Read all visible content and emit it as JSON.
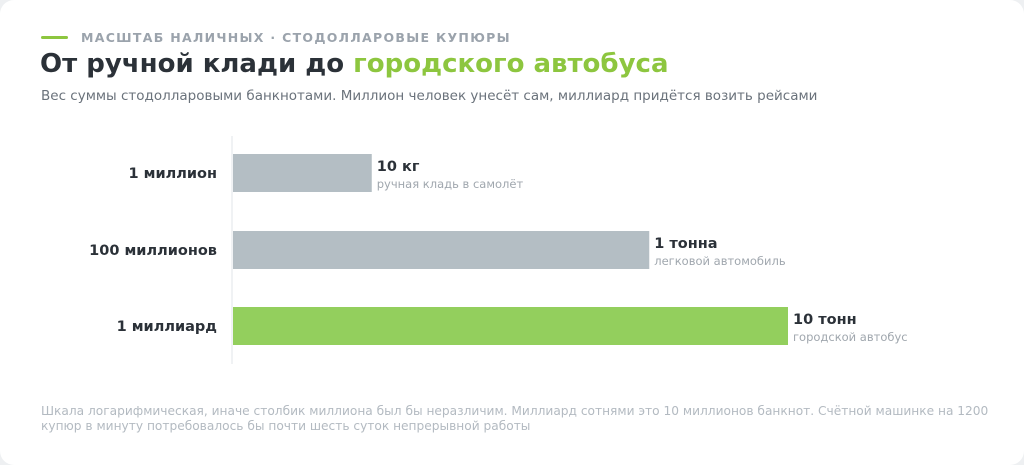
{
  "header": {
    "eyebrow": "МАСШТАБ НАЛИЧНЫХ · СТОДОЛЛАРОВЫЕ КУПЮРЫ",
    "title_plain": "От ручной клади до ",
    "title_accent": "городского автобуса",
    "subtitle": "Вес суммы стодолларовыми банкнотами. Миллион человек унесёт сам, миллиард придётся возить рейсами"
  },
  "footnote": "Шкала логарифмическая, иначе столбик миллиона был бы неразличим. Миллиард сотнями это 10 миллионов банкнот. Счётной машинке на 1200 купюр в минуту потребовалось бы почти шесть суток непрерывной работы",
  "colors": {
    "accent": "#8dc63f",
    "bar_neutral": "#b4bec4",
    "bar_highlight": "#93cf5d",
    "text_dark": "#2b3138",
    "text_muted": "#a0a7ae",
    "axis": "#e2e5e8"
  },
  "chart_data": {
    "type": "bar",
    "orientation": "horizontal",
    "scale": "log",
    "unit": "kg",
    "categories": [
      "1 миллион",
      "100 миллионов",
      "1 миллиард"
    ],
    "values": [
      10,
      1000,
      10000
    ],
    "value_labels": [
      "10 кг",
      "1 тонна",
      "10 тонн"
    ],
    "annotations": [
      "ручная кладь в самолёт",
      "легковой автомобиль",
      "городской автобус"
    ],
    "highlight_index": 2,
    "xlim": [
      1,
      15000
    ],
    "grid": false,
    "legend": "none"
  }
}
